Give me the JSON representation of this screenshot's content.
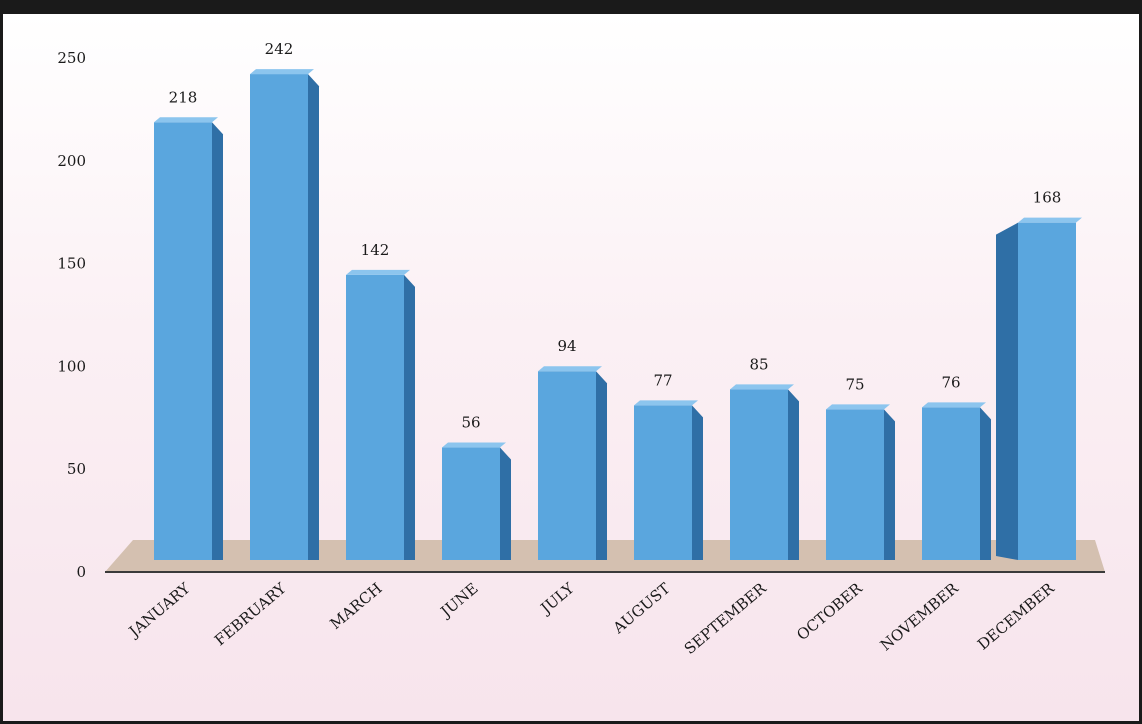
{
  "chart_data": {
    "type": "bar",
    "title": "",
    "xlabel": "",
    "ylabel": "",
    "categories": [
      "JANUARY",
      "FEBRUARY",
      "MARCH",
      "JUNE",
      "JULY",
      "AUGUST",
      "SEPTEMBER",
      "OCTOBER",
      "NOVEMBER",
      "DECEMBER"
    ],
    "values": [
      218,
      242,
      142,
      56,
      94,
      77,
      85,
      75,
      76,
      168
    ],
    "value_labels": [
      "218",
      "242",
      "142",
      "56",
      "94",
      "77",
      "85",
      "75",
      "76",
      "168"
    ],
    "yticks": [
      "0",
      "50",
      "100",
      "150",
      "200",
      "250"
    ],
    "ylim": [
      0,
      250
    ],
    "grid": false,
    "legend": "none",
    "style": "3d-columns",
    "colors": {
      "bar_front": "#5aa6de",
      "bar_side": "#2f6fa6",
      "bar_top": "#8cc5ee",
      "floor": "#d4c0b0",
      "axis": "#3a3a3a"
    }
  }
}
